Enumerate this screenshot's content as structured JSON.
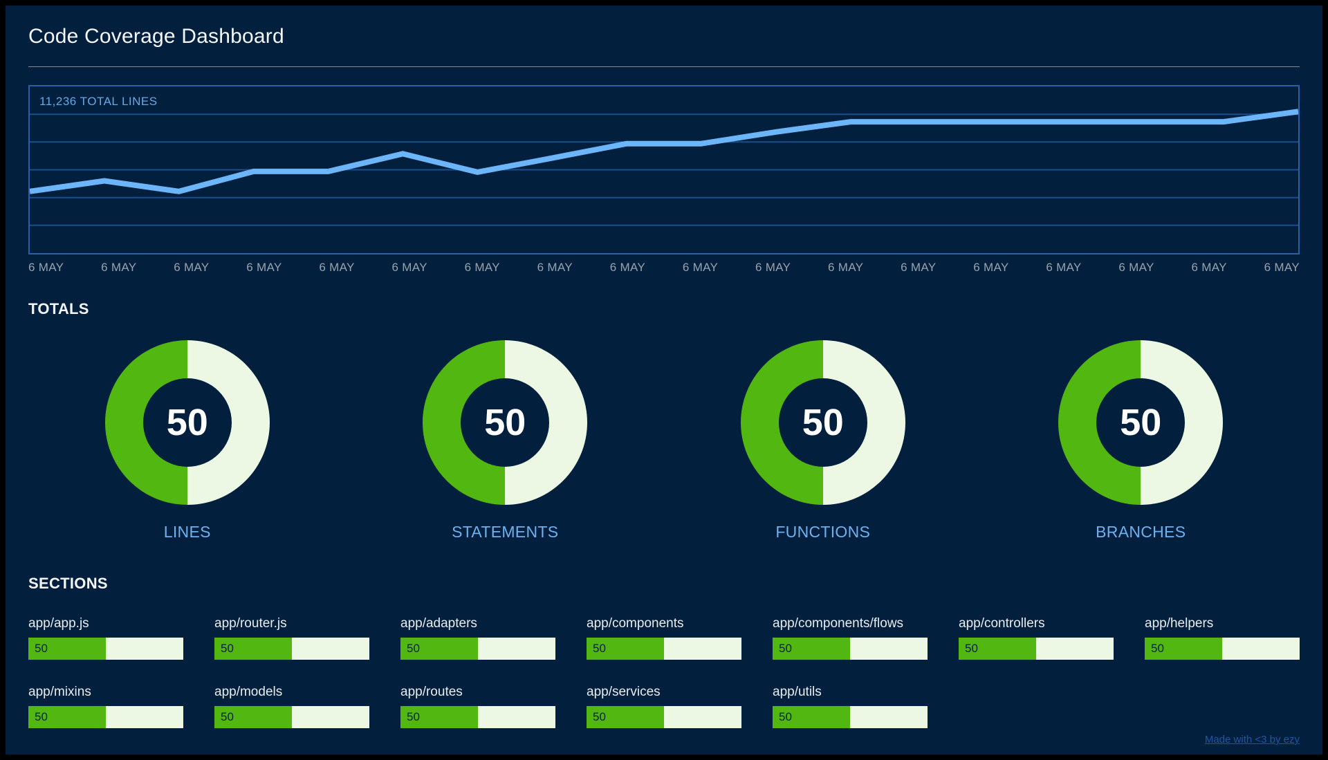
{
  "page": {
    "title": "Code Coverage Dashboard"
  },
  "colors": {
    "background": "#02203e",
    "chart_border": "#2a60a8",
    "chart_gridline": "#1d4c8a",
    "chart_line": "#6cb5f8",
    "chart_title_text": "#64a9e6",
    "axis_label_text": "#99a2ab",
    "gauge_filled": "#53b711",
    "gauge_empty": "#ecf8e3",
    "gauge_label_text": "#6fb0ef",
    "link_blue": "#1d55a6"
  },
  "chart_data": {
    "type": "line",
    "title": "11,236 TOTAL LINES",
    "total_lines": "11,236",
    "x_labels": [
      "6 MAY",
      "6 MAY",
      "6 MAY",
      "6 MAY",
      "6 MAY",
      "6 MAY",
      "6 MAY",
      "6 MAY",
      "6 MAY",
      "6 MAY",
      "6 MAY",
      "6 MAY",
      "6 MAY",
      "6 MAY",
      "6 MAY",
      "6 MAY",
      "6 MAY",
      "6 MAY"
    ],
    "xlabel": "",
    "ylabel": "",
    "y_axis_labeled": false,
    "grid": "horizontal",
    "gridline_rows": 6,
    "series": [
      {
        "name": "total lines",
        "values_pct_of_plot_height": [
          37,
          43.3,
          37,
          49,
          49,
          59.6,
          48.6,
          57,
          65.7,
          65.7,
          72.7,
          78.8,
          78.8,
          78.8,
          78.8,
          78.8,
          78.8,
          84.9
        ]
      }
    ],
    "ylim_pct": [
      0,
      100
    ],
    "legend": "none"
  },
  "totals": {
    "heading": "TOTALS",
    "gauges": [
      {
        "label": "LINES",
        "value": 50
      },
      {
        "label": "STATEMENTS",
        "value": 50
      },
      {
        "label": "FUNCTIONS",
        "value": 50
      },
      {
        "label": "BRANCHES",
        "value": 50
      }
    ]
  },
  "sections": {
    "heading": "SECTIONS",
    "items": [
      {
        "label": "app/app.js",
        "value": 50
      },
      {
        "label": "app/router.js",
        "value": 50
      },
      {
        "label": "app/adapters",
        "value": 50
      },
      {
        "label": "app/components",
        "value": 50
      },
      {
        "label": "app/components/flows",
        "value": 50
      },
      {
        "label": "app/controllers",
        "value": 50
      },
      {
        "label": "app/helpers",
        "value": 50
      },
      {
        "label": "app/mixins",
        "value": 50
      },
      {
        "label": "app/models",
        "value": 50
      },
      {
        "label": "app/routes",
        "value": 50
      },
      {
        "label": "app/services",
        "value": 50
      },
      {
        "label": "app/utils",
        "value": 50
      }
    ]
  },
  "footer": {
    "credit": "Made with <3 by ezy"
  }
}
